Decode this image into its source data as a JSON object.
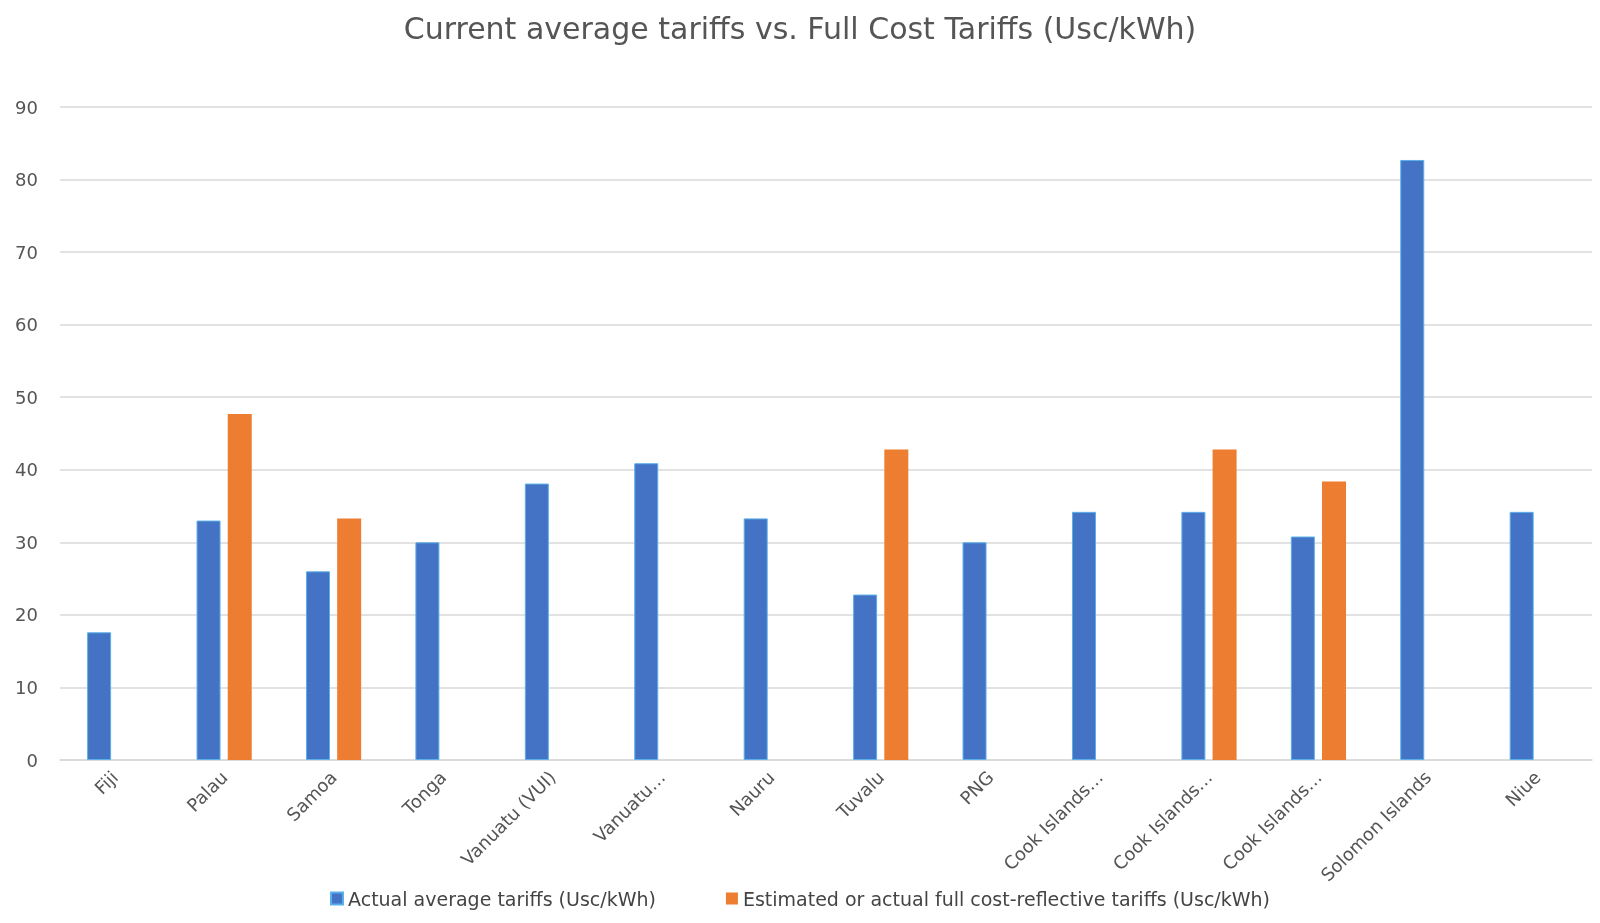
{
  "chart_data": {
    "type": "bar",
    "title": "Current average tariffs vs. Full Cost Tariffs (Usc/kWh)",
    "categories": [
      "Fiji",
      "Palau",
      "Samoa",
      "Tonga",
      "Vanuatu (VUI)",
      "Vanuatu…",
      "Nauru",
      "Tuvalu",
      "PNG",
      "Cook Islands…",
      "Cook Islands…",
      "Cook Islands…",
      "Solomon Islands",
      "Niue"
    ],
    "series": [
      {
        "name": "Actual average tariffs (Usc/kWh)",
        "color": "#4472c4",
        "values": [
          17.6,
          33,
          26,
          30,
          38.1,
          40.9,
          33.3,
          22.8,
          30,
          34.2,
          34.2,
          30.8,
          82.7,
          34.2
        ]
      },
      {
        "name": "Estimated or actual full cost-reflective tariffs (Usc/kWh)",
        "color": "#ed7d31",
        "values": [
          null,
          47.7,
          33.3,
          null,
          null,
          null,
          null,
          42.8,
          null,
          null,
          42.8,
          38.4,
          null,
          null
        ]
      }
    ],
    "ylim": [
      0,
      90
    ],
    "yticks": [
      0,
      10,
      20,
      30,
      40,
      50,
      60,
      70,
      80,
      90
    ],
    "grid": "y",
    "legend": "bottom"
  }
}
